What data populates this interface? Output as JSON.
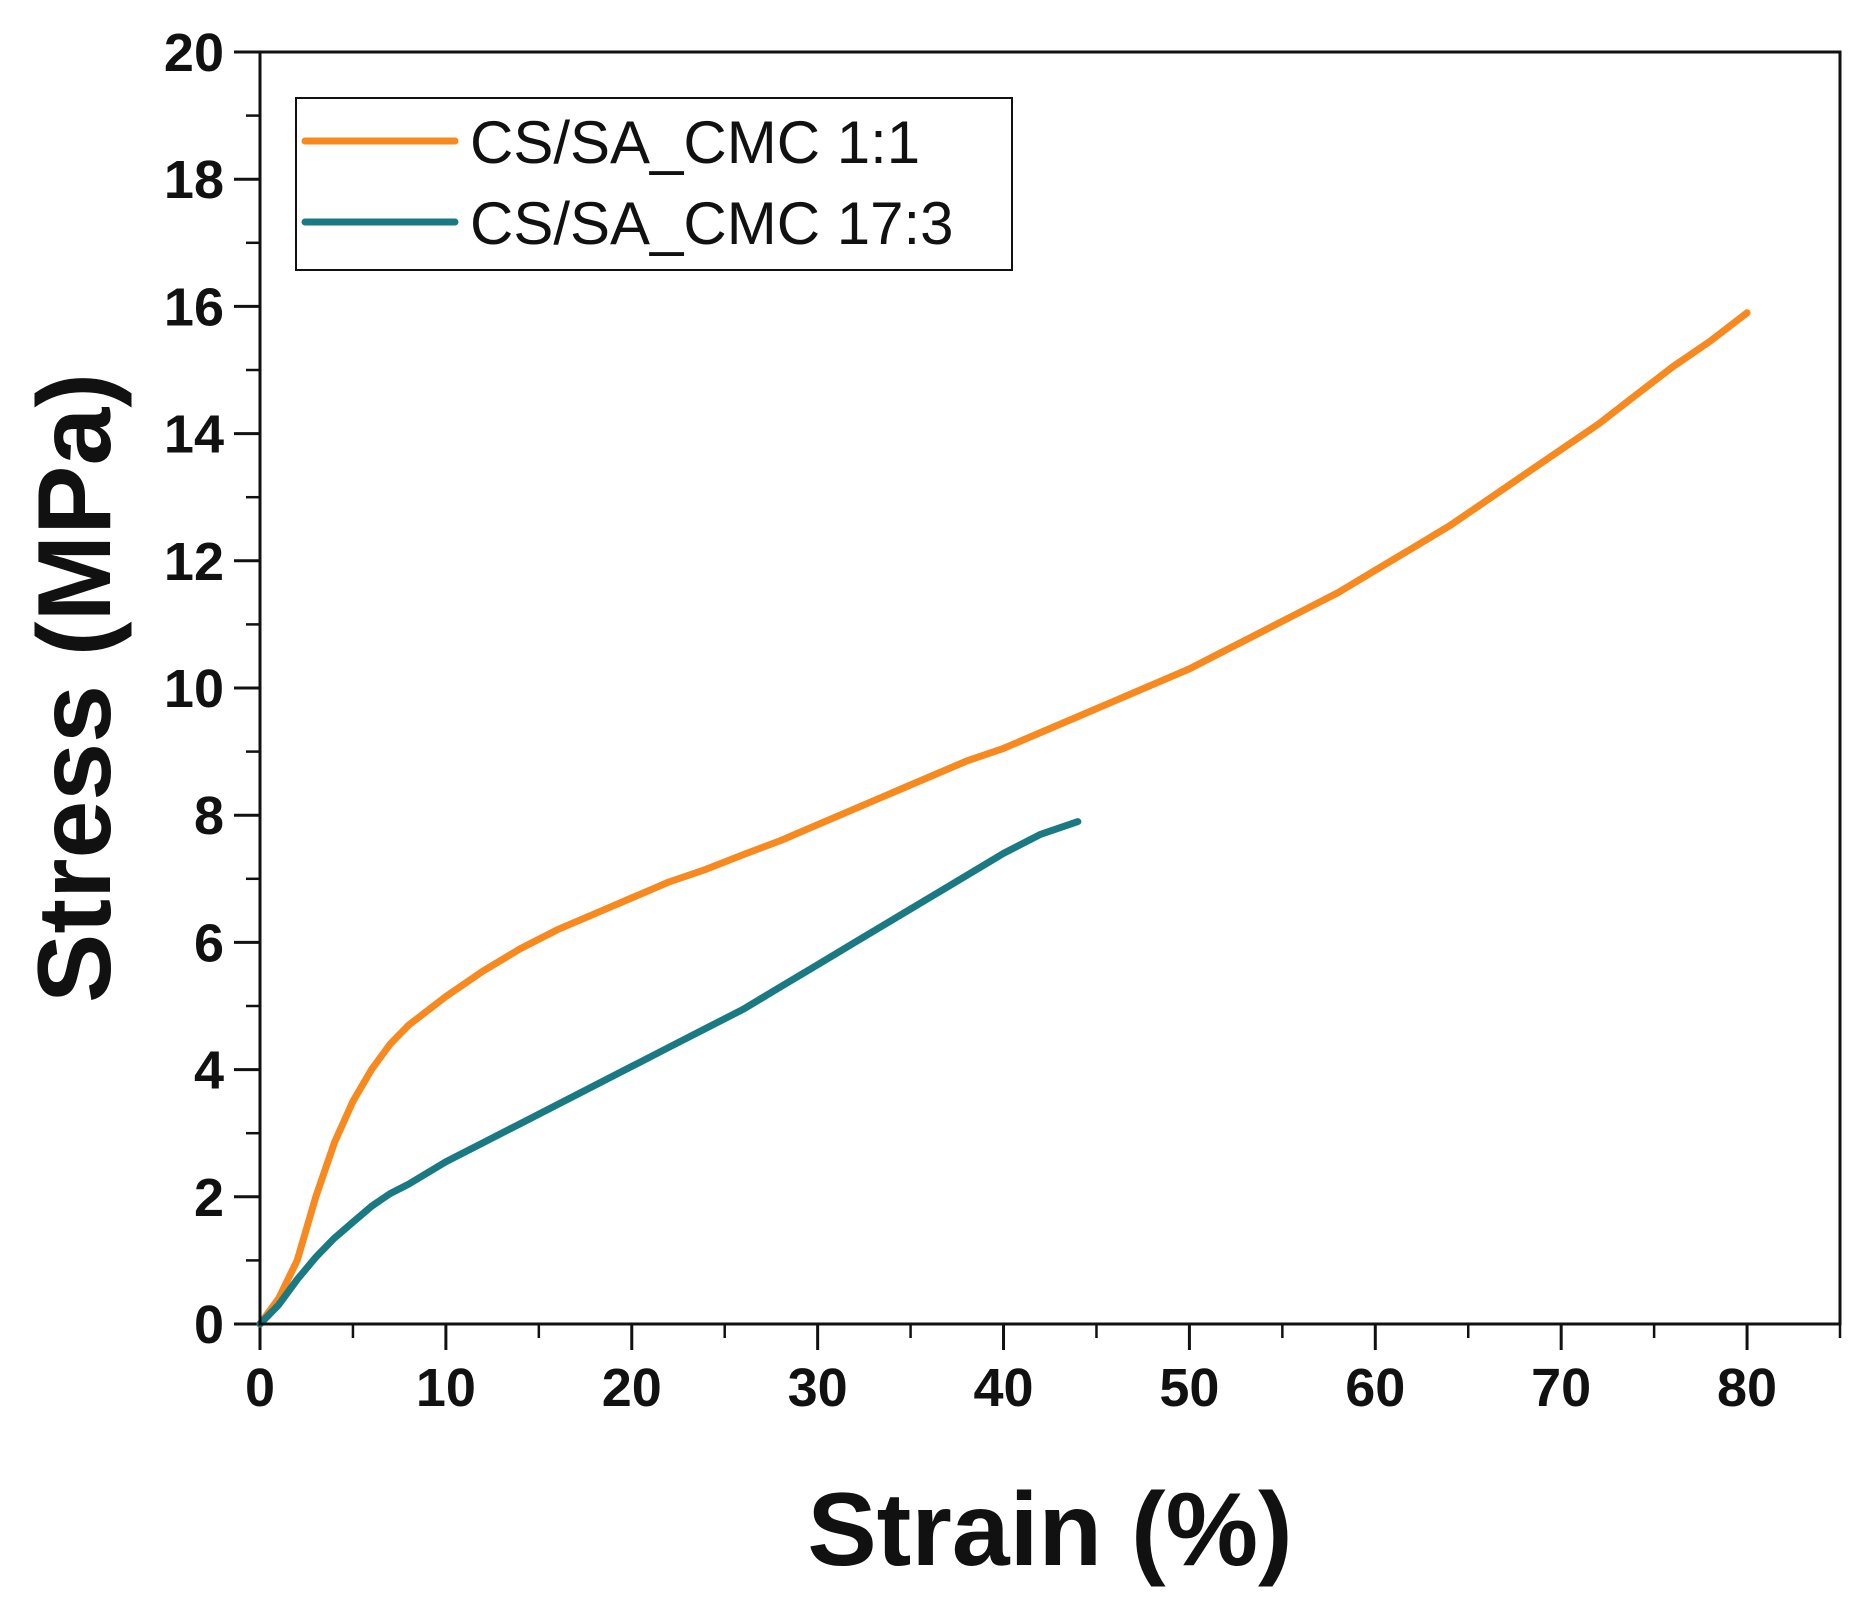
{
  "chart_data": {
    "type": "line",
    "title": "",
    "xlabel": "Strain (%)",
    "ylabel": "Stress (MPa)",
    "xlim": [
      0,
      85
    ],
    "ylim": [
      0,
      20
    ],
    "xticks": [
      0,
      10,
      20,
      30,
      40,
      50,
      60,
      70,
      80
    ],
    "yticks": [
      0,
      2,
      4,
      6,
      8,
      10,
      12,
      14,
      16,
      18,
      20
    ],
    "x_minor_step": 5,
    "y_minor_step": 1,
    "grid": false,
    "legend_position": "top-left",
    "series": [
      {
        "name": "CS/SA_CMC 1:1",
        "color": "#F7891F",
        "x": [
          0,
          1,
          2,
          3,
          4,
          5,
          6,
          7,
          8,
          10,
          12,
          14,
          16,
          18,
          20,
          22,
          24,
          26,
          28,
          30,
          32,
          34,
          36,
          38,
          40,
          42,
          44,
          46,
          48,
          50,
          52,
          54,
          56,
          58,
          60,
          62,
          64,
          66,
          68,
          70,
          72,
          74,
          76,
          78,
          80
        ],
        "y": [
          0,
          0.4,
          1.0,
          2.0,
          2.85,
          3.5,
          4.0,
          4.4,
          4.7,
          5.15,
          5.55,
          5.9,
          6.2,
          6.45,
          6.7,
          6.95,
          7.15,
          7.38,
          7.6,
          7.85,
          8.1,
          8.35,
          8.6,
          8.85,
          9.05,
          9.3,
          9.55,
          9.8,
          10.05,
          10.3,
          10.6,
          10.9,
          11.2,
          11.5,
          11.85,
          12.2,
          12.55,
          12.95,
          13.35,
          13.75,
          14.15,
          14.6,
          15.05,
          15.45,
          15.9
        ]
      },
      {
        "name": "CS/SA_CMC 17:3",
        "color": "#1A7A84",
        "x": [
          0,
          1,
          2,
          3,
          4,
          5,
          6,
          7,
          8,
          10,
          12,
          14,
          16,
          18,
          20,
          22,
          24,
          26,
          28,
          30,
          32,
          34,
          36,
          38,
          40,
          42,
          44
        ],
        "y": [
          0,
          0.3,
          0.7,
          1.05,
          1.35,
          1.6,
          1.85,
          2.05,
          2.2,
          2.55,
          2.85,
          3.15,
          3.45,
          3.75,
          4.05,
          4.35,
          4.65,
          4.95,
          5.3,
          5.65,
          6.0,
          6.35,
          6.7,
          7.05,
          7.4,
          7.7,
          7.9
        ]
      }
    ]
  }
}
